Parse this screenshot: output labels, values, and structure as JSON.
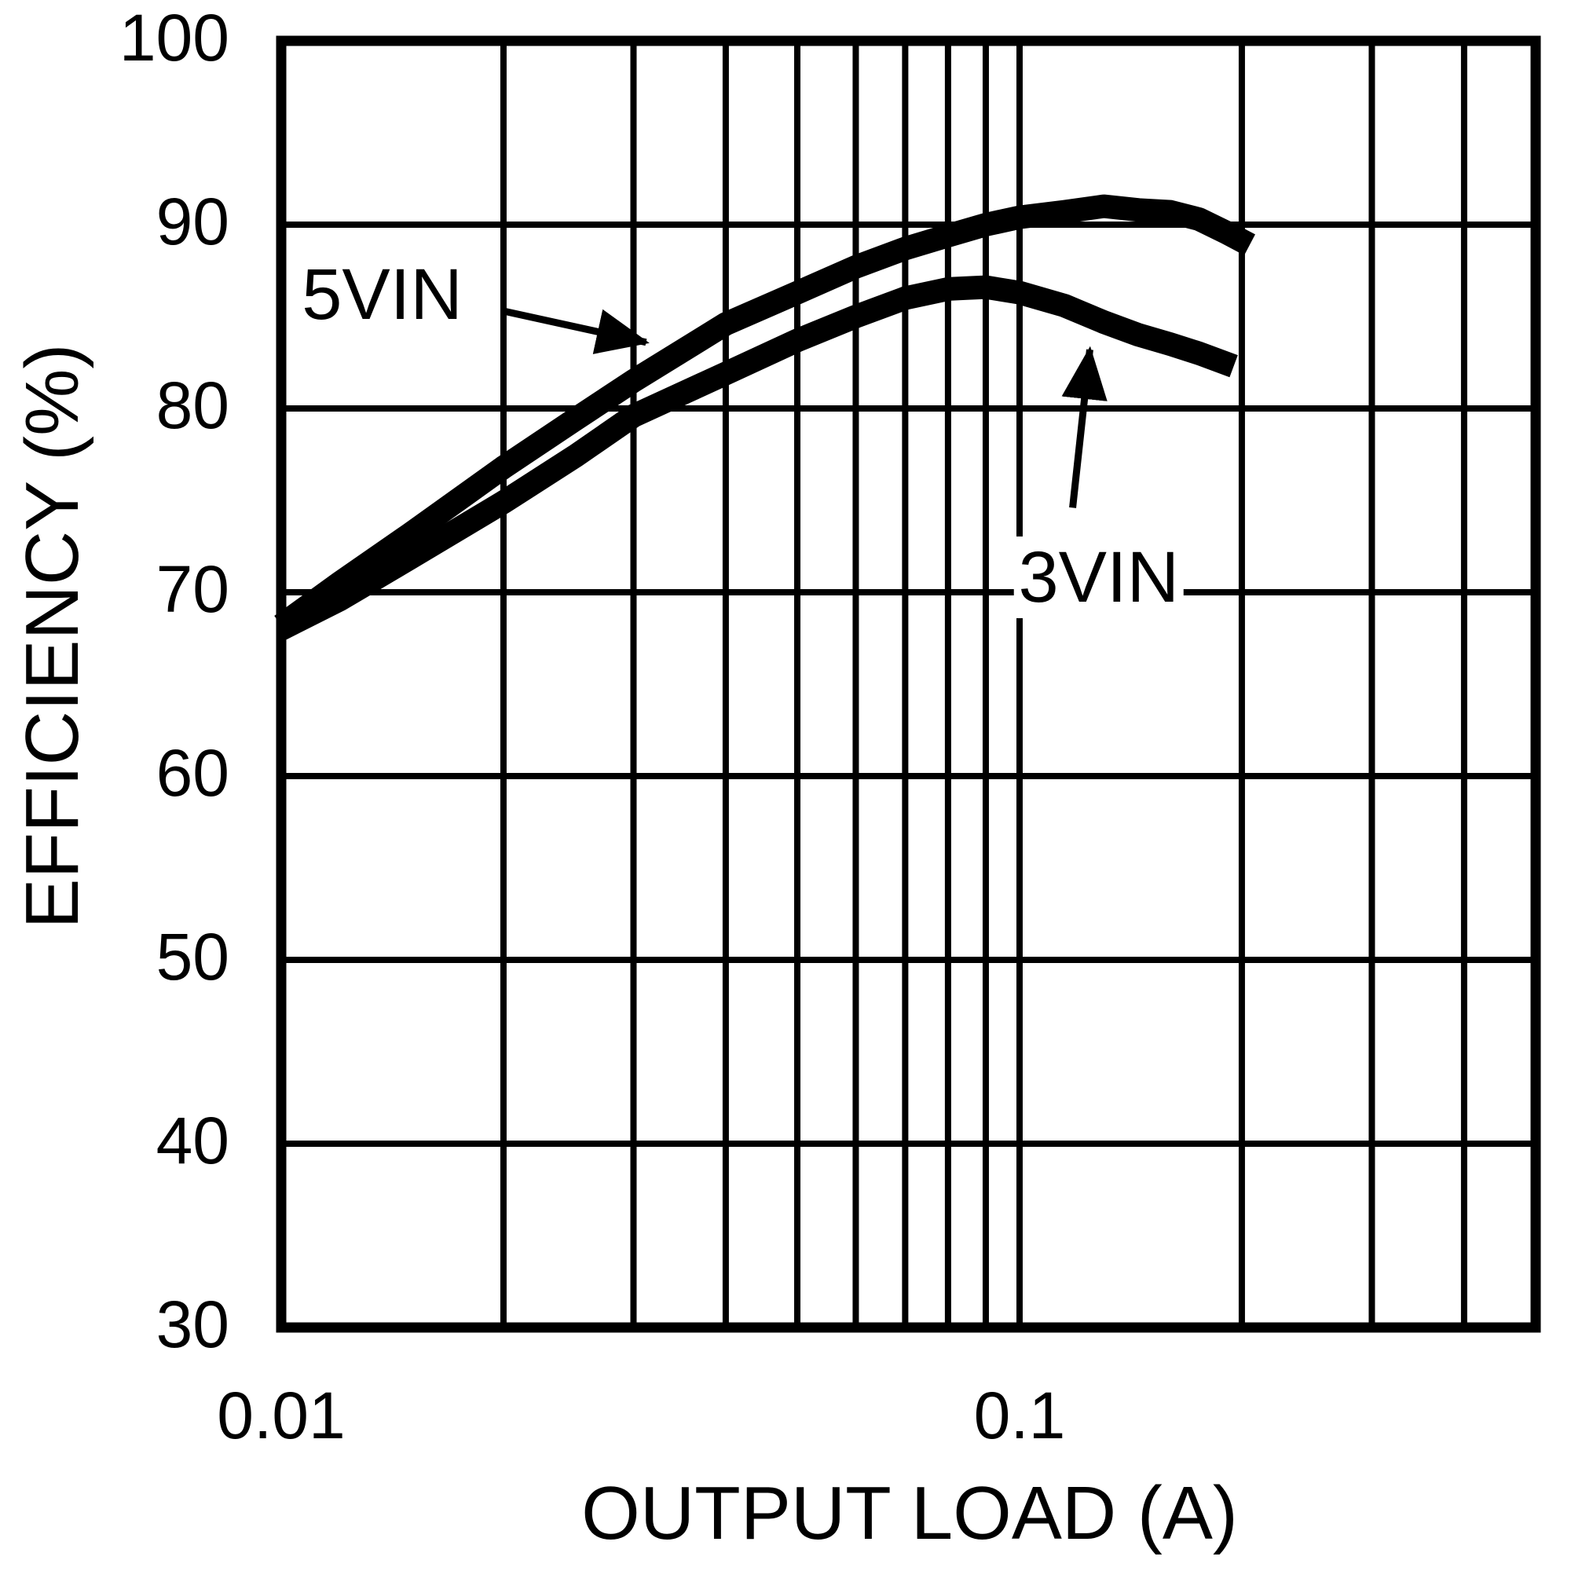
{
  "chart_data": {
    "type": "line",
    "title": "",
    "xlabel": "OUTPUT LOAD (A)",
    "ylabel": "EFFICIENCY (%)",
    "x_scale": "log",
    "xlim": [
      0.01,
      0.5
    ],
    "ylim": [
      30,
      100
    ],
    "grid": true,
    "legend_position": "inline-annotations",
    "x_gridlines": [
      0.02,
      0.03,
      0.04,
      0.05,
      0.06,
      0.07,
      0.08,
      0.09,
      0.1,
      0.2,
      0.3,
      0.4
    ],
    "y_gridlines": [
      40,
      50,
      60,
      70,
      80,
      90
    ],
    "x_ticks": [
      {
        "value": 0.01,
        "label": "0.01"
      },
      {
        "value": 0.1,
        "label": "0.1"
      }
    ],
    "y_ticks": [
      {
        "value": 100,
        "label": "100"
      },
      {
        "value": 90,
        "label": "90"
      },
      {
        "value": 80,
        "label": "80"
      },
      {
        "value": 70,
        "label": "70"
      },
      {
        "value": 60,
        "label": "60"
      },
      {
        "value": 50,
        "label": "50"
      },
      {
        "value": 40,
        "label": "40"
      },
      {
        "value": 30,
        "label": "30"
      }
    ],
    "series": [
      {
        "name": "5VIN",
        "x": [
          0.01,
          0.012,
          0.015,
          0.02,
          0.025,
          0.03,
          0.04,
          0.05,
          0.06,
          0.07,
          0.08,
          0.09,
          0.1,
          0.115,
          0.13,
          0.145,
          0.16,
          0.175,
          0.19,
          0.205
        ],
        "y": [
          68.2,
          70.5,
          73.2,
          76.8,
          79.4,
          81.5,
          84.6,
          86.3,
          87.7,
          88.7,
          89.4,
          90.0,
          90.4,
          90.7,
          91.0,
          90.8,
          90.7,
          90.3,
          89.6,
          88.9
        ]
      },
      {
        "name": "3VIN",
        "x": [
          0.01,
          0.012,
          0.015,
          0.02,
          0.025,
          0.03,
          0.04,
          0.05,
          0.06,
          0.07,
          0.08,
          0.09,
          0.1,
          0.115,
          0.13,
          0.145,
          0.16,
          0.175,
          0.195
        ],
        "y": [
          68.0,
          69.6,
          71.9,
          74.9,
          77.4,
          79.6,
          81.9,
          83.7,
          85.0,
          86.0,
          86.5,
          86.6,
          86.3,
          85.6,
          84.7,
          84.0,
          83.5,
          83.0,
          82.3
        ]
      }
    ],
    "annotations": [
      {
        "text": "5VIN",
        "anchor": {
          "x": 0.0137,
          "y": 86.2
        },
        "arrow": {
          "from": {
            "x": 0.02,
            "y": 85.3
          },
          "to": {
            "x": 0.0312,
            "y": 83.6
          }
        }
      },
      {
        "text": "3VIN",
        "anchor": {
          "x": 0.128,
          "y": 70.8
        },
        "arrow": {
          "from": {
            "x": 0.118,
            "y": 74.6
          },
          "to": {
            "x": 0.1245,
            "y": 83.2
          }
        }
      }
    ],
    "colors": {
      "stroke": "#000000",
      "background": "#ffffff"
    }
  }
}
